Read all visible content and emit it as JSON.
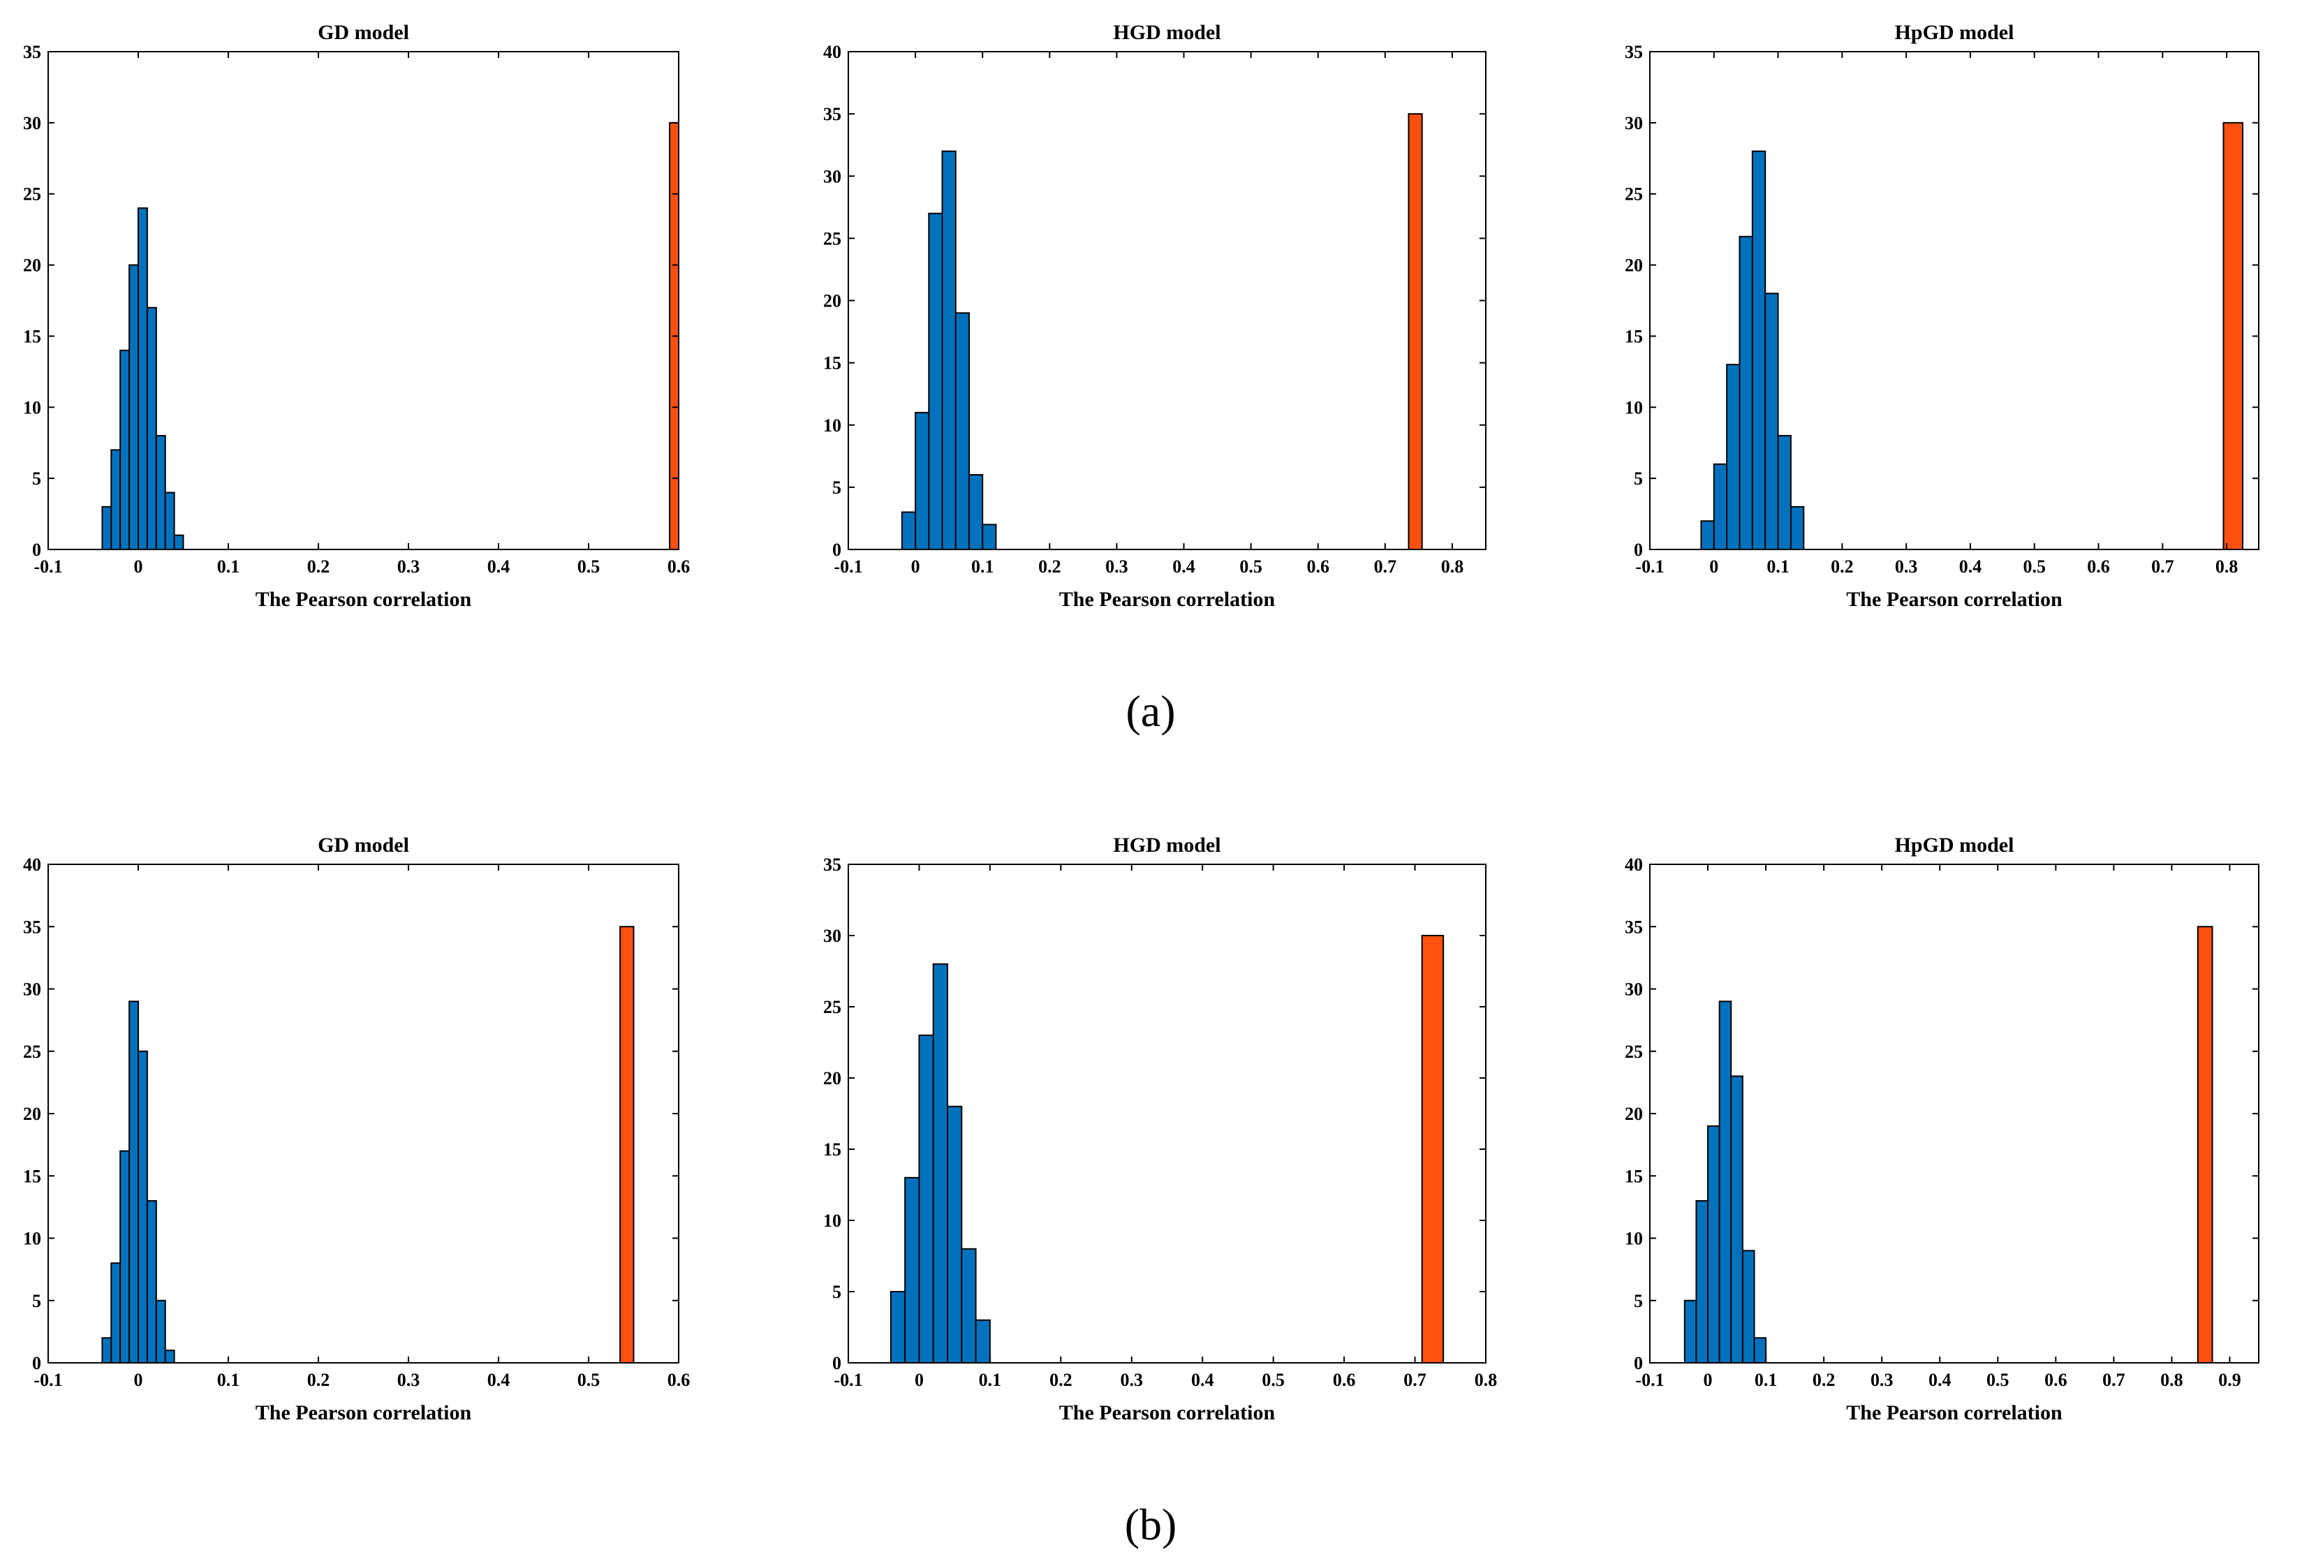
{
  "figure": {
    "row_labels": [
      "(a)",
      "(b)"
    ]
  },
  "colors": {
    "null_bars": "#0072BD",
    "observed_bar": "#FF5010",
    "bar_edge": "#000000",
    "axes": "#000000"
  },
  "chart_data": [
    {
      "type": "bar",
      "title": "GD model",
      "xlabel": "The Pearson correlation",
      "ylabel": "",
      "xlim": [
        -0.1,
        0.6
      ],
      "ylim": [
        0,
        35
      ],
      "xticks": [
        "-0.1",
        "0",
        "0.1",
        "0.2",
        "0.3",
        "0.4",
        "0.5",
        "0.6"
      ],
      "xtick_values": [
        -0.1,
        0,
        0.1,
        0.2,
        0.3,
        0.4,
        0.5,
        0.6
      ],
      "yticks": [
        "0",
        "5",
        "10",
        "15",
        "20",
        "25",
        "30",
        "35"
      ],
      "ytick_values": [
        0,
        5,
        10,
        15,
        20,
        25,
        30,
        35
      ],
      "bin_width": 0.01,
      "null_bins_start": -0.04,
      "null_counts": [
        3,
        7,
        14,
        20,
        24,
        17,
        8,
        4,
        1
      ],
      "observed_bin": [
        0.59,
        0.6
      ],
      "observed_count": 30
    },
    {
      "type": "bar",
      "title": "HGD model",
      "xlabel": "The Pearson correlation",
      "ylabel": "",
      "xlim": [
        -0.1,
        0.85
      ],
      "ylim": [
        0,
        40
      ],
      "xticks": [
        "-0.1",
        "0",
        "0.1",
        "0.2",
        "0.3",
        "0.4",
        "0.5",
        "0.6",
        "0.7",
        "0.8"
      ],
      "xtick_values": [
        -0.1,
        0,
        0.1,
        0.2,
        0.3,
        0.4,
        0.5,
        0.6,
        0.7,
        0.8
      ],
      "yticks": [
        "0",
        "5",
        "10",
        "15",
        "20",
        "25",
        "30",
        "35",
        "40"
      ],
      "ytick_values": [
        0,
        5,
        10,
        15,
        20,
        25,
        30,
        35,
        40
      ],
      "bin_width": 0.02,
      "null_bins_start": -0.02,
      "null_counts": [
        3,
        11,
        27,
        32,
        19,
        6,
        2
      ],
      "observed_bin": [
        0.735,
        0.755
      ],
      "observed_count": 35
    },
    {
      "type": "bar",
      "title": "HpGD model",
      "xlabel": "The Pearson correlation",
      "ylabel": "",
      "xlim": [
        -0.1,
        0.85
      ],
      "ylim": [
        0,
        35
      ],
      "xticks": [
        "-0.1",
        "0",
        "0.1",
        "0.2",
        "0.3",
        "0.4",
        "0.5",
        "0.6",
        "0.7",
        "0.8"
      ],
      "xtick_values": [
        -0.1,
        0,
        0.1,
        0.2,
        0.3,
        0.4,
        0.5,
        0.6,
        0.7,
        0.8
      ],
      "yticks": [
        "0",
        "5",
        "10",
        "15",
        "20",
        "25",
        "30",
        "35"
      ],
      "ytick_values": [
        0,
        5,
        10,
        15,
        20,
        25,
        30,
        35
      ],
      "bin_width": 0.02,
      "null_bins_start": -0.02,
      "null_counts": [
        2,
        6,
        13,
        22,
        28,
        18,
        8,
        3
      ],
      "observed_bin": [
        0.795,
        0.825
      ],
      "observed_count": 30
    },
    {
      "type": "bar",
      "title": "GD model",
      "xlabel": "The Pearson correlation",
      "ylabel": "",
      "xlim": [
        -0.1,
        0.6
      ],
      "ylim": [
        0,
        40
      ],
      "xticks": [
        "-0.1",
        "0",
        "0.1",
        "0.2",
        "0.3",
        "0.4",
        "0.5",
        "0.6"
      ],
      "xtick_values": [
        -0.1,
        0,
        0.1,
        0.2,
        0.3,
        0.4,
        0.5,
        0.6
      ],
      "yticks": [
        "0",
        "5",
        "10",
        "15",
        "20",
        "25",
        "30",
        "35",
        "40"
      ],
      "ytick_values": [
        0,
        5,
        10,
        15,
        20,
        25,
        30,
        35,
        40
      ],
      "bin_width": 0.01,
      "null_bins_start": -0.04,
      "null_counts": [
        2,
        8,
        17,
        29,
        25,
        13,
        5,
        1
      ],
      "observed_bin": [
        0.535,
        0.55
      ],
      "observed_count": 35
    },
    {
      "type": "bar",
      "title": "HGD model",
      "xlabel": "The Pearson correlation",
      "ylabel": "",
      "xlim": [
        -0.1,
        0.8
      ],
      "ylim": [
        0,
        35
      ],
      "xticks": [
        "-0.1",
        "0",
        "0.1",
        "0.2",
        "0.3",
        "0.4",
        "0.5",
        "0.6",
        "0.7",
        "0.8"
      ],
      "xtick_values": [
        -0.1,
        0,
        0.1,
        0.2,
        0.3,
        0.4,
        0.5,
        0.6,
        0.7,
        0.8
      ],
      "yticks": [
        "0",
        "5",
        "10",
        "15",
        "20",
        "25",
        "30",
        "35"
      ],
      "ytick_values": [
        0,
        5,
        10,
        15,
        20,
        25,
        30,
        35
      ],
      "bin_width": 0.02,
      "null_bins_start": -0.04,
      "null_counts": [
        5,
        13,
        23,
        28,
        18,
        8,
        3
      ],
      "observed_bin": [
        0.71,
        0.74
      ],
      "observed_count": 30
    },
    {
      "type": "bar",
      "title": "HpGD model",
      "xlabel": "The Pearson correlation",
      "ylabel": "",
      "xlim": [
        -0.1,
        0.95
      ],
      "ylim": [
        0,
        40
      ],
      "xticks": [
        "-0.1",
        "0",
        "0.1",
        "0.2",
        "0.3",
        "0.4",
        "0.5",
        "0.6",
        "0.7",
        "0.8",
        "0.9"
      ],
      "xtick_values": [
        -0.1,
        0,
        0.1,
        0.2,
        0.3,
        0.4,
        0.5,
        0.6,
        0.7,
        0.8,
        0.9
      ],
      "yticks": [
        "0",
        "5",
        "10",
        "15",
        "20",
        "25",
        "30",
        "35",
        "40"
      ],
      "ytick_values": [
        0,
        5,
        10,
        15,
        20,
        25,
        30,
        35,
        40
      ],
      "bin_width": 0.02,
      "null_bins_start": -0.04,
      "null_counts": [
        5,
        13,
        19,
        29,
        23,
        9,
        2
      ],
      "observed_bin": [
        0.845,
        0.87
      ],
      "observed_count": 35
    }
  ]
}
